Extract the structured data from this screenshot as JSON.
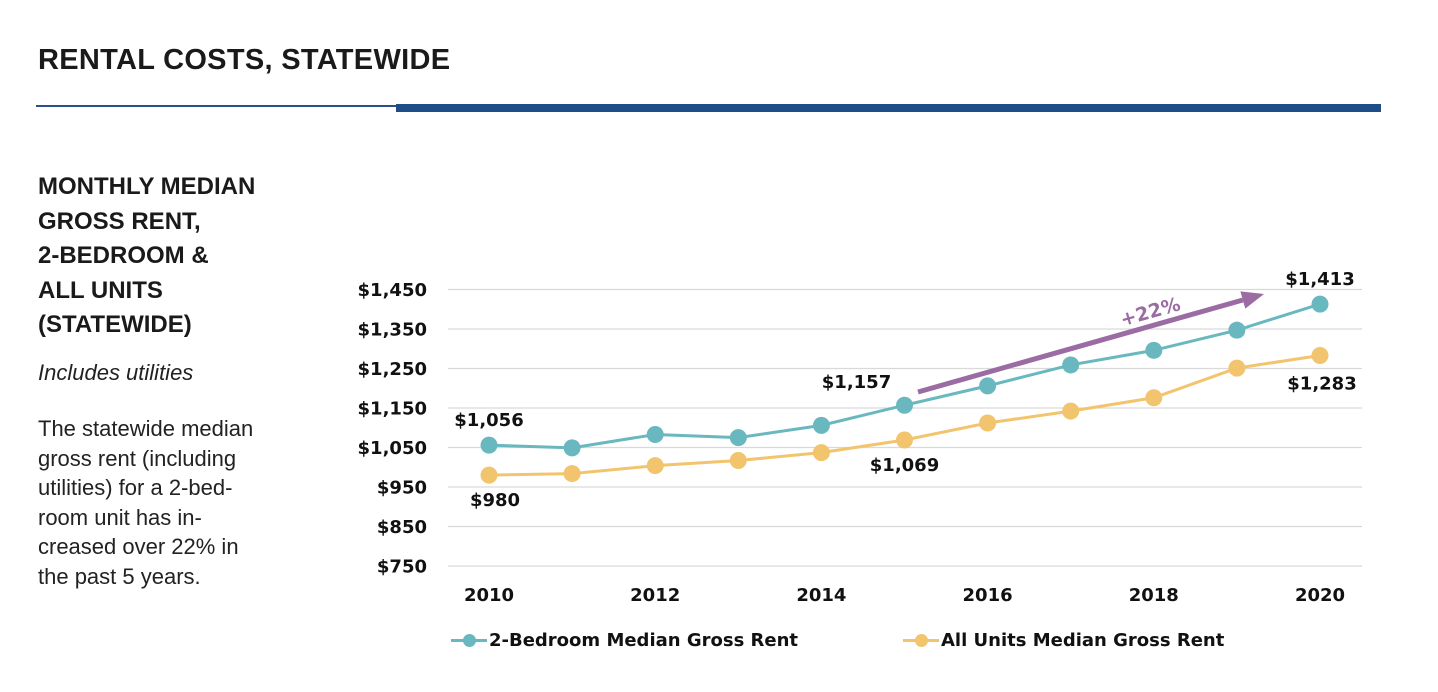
{
  "page": {
    "title": "RENTAL COSTS, STATEWIDE"
  },
  "sidebar": {
    "heading_lines": [
      "MONTHLY MEDIAN",
      "GROSS RENT,",
      "2-BEDROOM &",
      "ALL UNITS",
      "(STATEWIDE)"
    ],
    "note": "Includes utilities",
    "body_lines": [
      "The statewide median",
      "gross rent (including",
      "utilities) for a 2-bed-",
      "room unit has in-",
      "creased over 22% in",
      "the past 5 years."
    ]
  },
  "chart_data": {
    "type": "line",
    "title": "",
    "xlabel": "",
    "ylabel": "",
    "x": [
      2010,
      2011,
      2012,
      2013,
      2014,
      2015,
      2016,
      2017,
      2018,
      2019,
      2020
    ],
    "x_tick_labels": [
      "2010",
      "2012",
      "2014",
      "2016",
      "2018",
      "2020"
    ],
    "y_tick_labels": [
      "$1,450",
      "$1,350",
      "$1,250",
      "$1,150",
      "$1,050",
      "$950",
      "$850",
      "$750"
    ],
    "ylim": [
      750,
      1450
    ],
    "grid": true,
    "legend_position": "bottom",
    "series": [
      {
        "name": "2-Bedroom Median Gross Rent",
        "color": "#6ab8bf",
        "values": [
          1056,
          1049,
          1083,
          1075,
          1106,
          1157,
          1206,
          1259,
          1296,
          1347,
          1413
        ]
      },
      {
        "name": "All Units Median Gross Rent",
        "color": "#f2c46e",
        "values": [
          980,
          984,
          1004,
          1017,
          1037,
          1069,
          1112,
          1142,
          1176,
          1251,
          1283
        ]
      }
    ],
    "data_labels": [
      {
        "series": 0,
        "index": 0,
        "text": "$1,056",
        "position": "above"
      },
      {
        "series": 0,
        "index": 5,
        "text": "$1,157",
        "position": "above-left"
      },
      {
        "series": 0,
        "index": 10,
        "text": "$1,413",
        "position": "above"
      },
      {
        "series": 1,
        "index": 0,
        "text": "$980",
        "position": "below"
      },
      {
        "series": 1,
        "index": 5,
        "text": "$1,069",
        "position": "below"
      },
      {
        "series": 1,
        "index": 10,
        "text": "$1,283",
        "position": "below"
      }
    ],
    "annotation": {
      "text": "+22%",
      "color": "#9a6ca3",
      "from_x": 2015,
      "from_y": 1157,
      "to_x": 2020,
      "to_y": 1413
    }
  }
}
